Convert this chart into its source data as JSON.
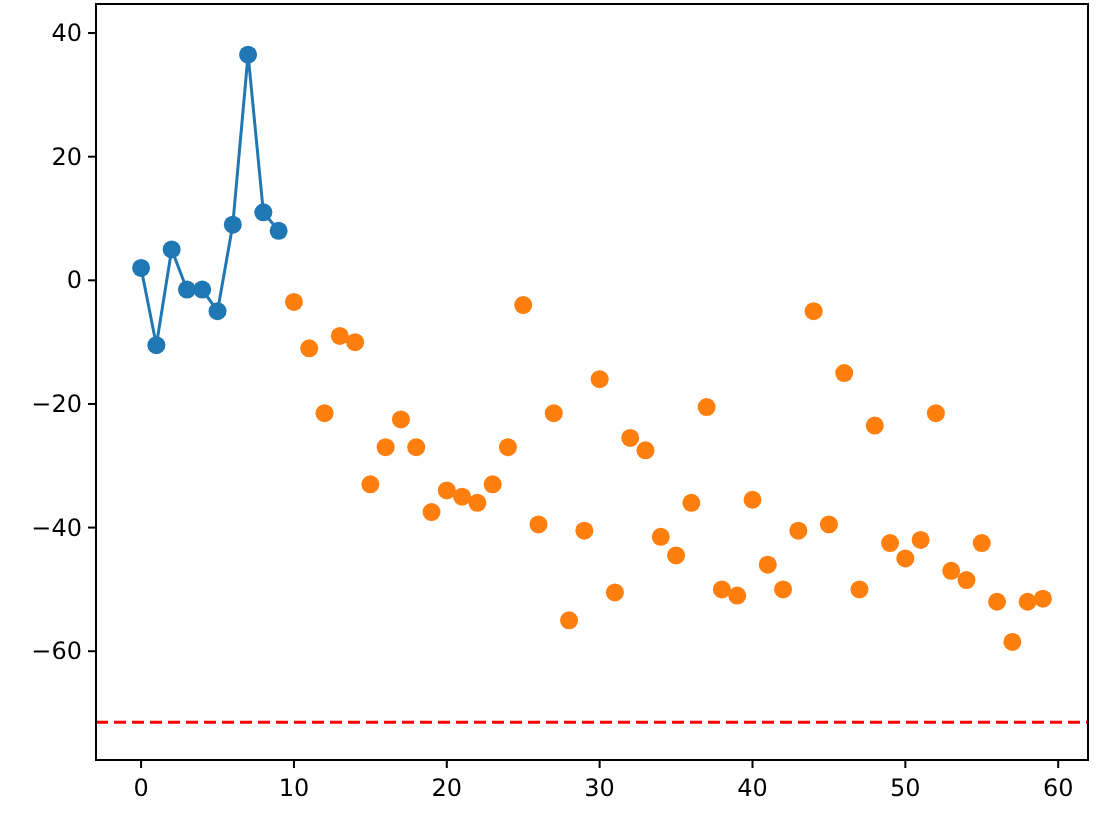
{
  "chart_data": {
    "type": "scatter",
    "xlim": [
      -2.95,
      61.95
    ],
    "ylim": [
      -77.6,
      44.7
    ],
    "xticks": [
      0,
      10,
      20,
      30,
      40,
      50,
      60
    ],
    "yticks": [
      -60,
      -40,
      -20,
      0,
      20,
      40
    ],
    "grid": false,
    "marker": "circle",
    "series": [
      {
        "type": "line",
        "color": "#1f77b4",
        "x": [
          0,
          1,
          2,
          3,
          4,
          5,
          6,
          7,
          8,
          9
        ],
        "values": [
          2,
          -10.5,
          5,
          -1.5,
          -1.5,
          -5,
          9,
          36.5,
          11,
          8
        ]
      },
      {
        "color": "#ff7f0e",
        "x": [
          10,
          11,
          12,
          13,
          14,
          15,
          16,
          17,
          18,
          19,
          20,
          21,
          22,
          23,
          24,
          25,
          26,
          27,
          28,
          29,
          30,
          31,
          32,
          33,
          34,
          35,
          36,
          37,
          38,
          39,
          40,
          41,
          42,
          43,
          44,
          45,
          46,
          47,
          48,
          49,
          50,
          51,
          52,
          53,
          54,
          55,
          56,
          57,
          58,
          59
        ],
        "values": [
          -3.5,
          -11,
          -21.5,
          -9,
          -10,
          -33,
          -27,
          -22.5,
          -27,
          -37.5,
          -34,
          -35,
          -36,
          -33,
          -27,
          -4,
          -39.5,
          -21.5,
          -55,
          -40.5,
          -16,
          -50.5,
          -25.5,
          -27.5,
          -41.5,
          -44.5,
          -36,
          -20.5,
          -50,
          -51,
          -35.5,
          -46,
          -50,
          -40.5,
          -5,
          -39.5,
          -15,
          -50,
          -23.5,
          -42.5,
          -45,
          -42,
          -21.5,
          -47,
          -48.5,
          -42.5,
          -52,
          -58.5,
          -52,
          -51.5
        ]
      }
    ],
    "ref_lines": [
      {
        "axis": "y",
        "value": -71.5,
        "color": "#ff0000",
        "line_style": "dashed"
      }
    ]
  }
}
